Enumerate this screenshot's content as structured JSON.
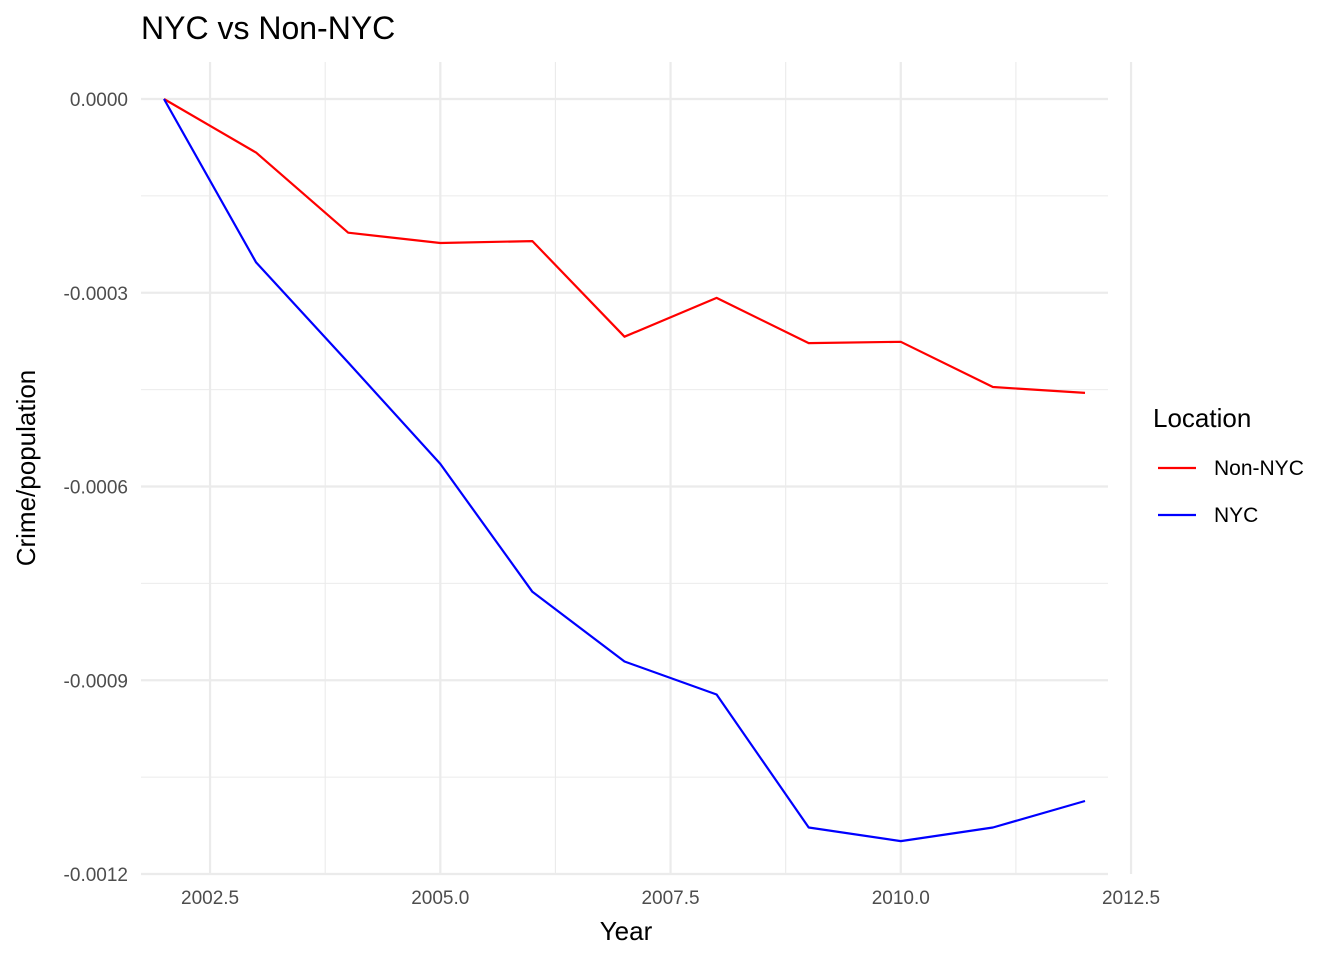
{
  "chart_data": {
    "type": "line",
    "title": "NYC vs Non-NYC",
    "xlabel": "Year",
    "ylabel": "Crime/population",
    "xlim": [
      2001.75,
      2012.25
    ],
    "ylim": [
      -0.0012,
      0.0
    ],
    "x_ticks": [
      "2002.5",
      "2005.0",
      "2007.5",
      "2010.0",
      "2012.5"
    ],
    "y_ticks": [
      "0.0000",
      "-0.0003",
      "-0.0006",
      "-0.0009",
      "-0.0012"
    ],
    "grid": true,
    "legend": {
      "title": "Location",
      "placement": "right"
    },
    "x": [
      2002,
      2003,
      2004,
      2005,
      2006,
      2007,
      2008,
      2009,
      2010,
      2011,
      2012
    ],
    "series": [
      {
        "name": "Non-NYC",
        "color": "#ff0000",
        "values": [
          0.0,
          -8.3e-05,
          -0.000207,
          -0.000223,
          -0.00022,
          -0.000368,
          -0.000308,
          -0.000378,
          -0.000376,
          -0.000446,
          -0.000455
        ]
      },
      {
        "name": "NYC",
        "color": "#0000ff",
        "values": [
          0.0,
          -0.000253,
          -0.000408,
          -0.000565,
          -0.000763,
          -0.000871,
          -0.000922,
          -0.001128,
          -0.001149,
          -0.001128,
          -0.001087
        ]
      }
    ]
  }
}
